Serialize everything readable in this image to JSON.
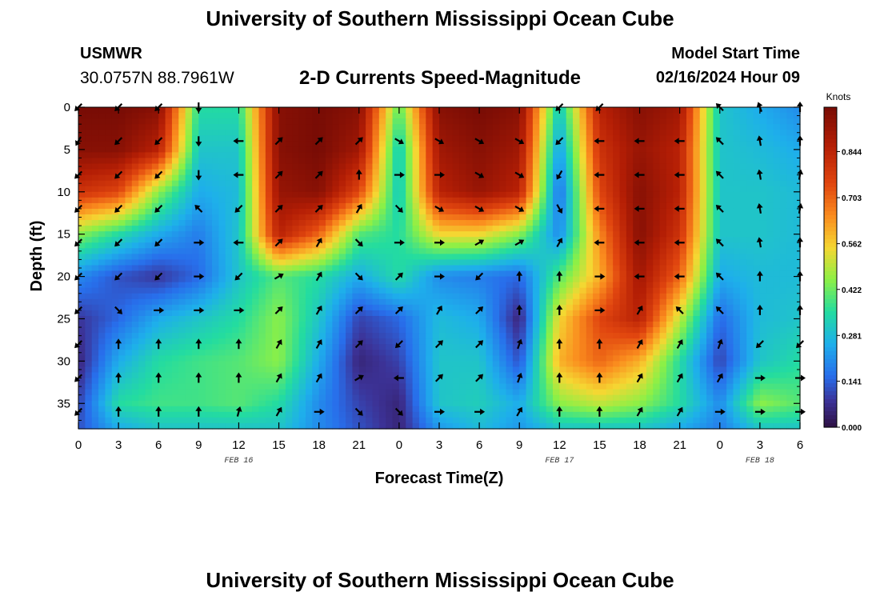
{
  "page": {
    "title": "University of Southern Mississippi Ocean Cube",
    "footer_title": "University of Southern Mississippi Ocean Cube"
  },
  "header": {
    "station": "USMWR",
    "coords": "30.0757N  88.7961W",
    "plot_title": "2-D Currents Speed-Magnitude",
    "model_label": "Model Start Time",
    "model_time": "02/16/2024 Hour 09"
  },
  "chart_data": {
    "type": "heatmap",
    "title": "2-D Currents Speed-Magnitude",
    "xlabel": "Forecast Time(Z)",
    "ylabel": "Depth (ft)",
    "x_tick_labels": [
      "0",
      "3",
      "6",
      "9",
      "12",
      "15",
      "18",
      "21",
      "0",
      "3",
      "6",
      "9",
      "12",
      "15",
      "18",
      "21",
      "0",
      "3",
      "6"
    ],
    "x_range_hours": [
      0,
      54
    ],
    "y_range_ft": [
      0,
      38
    ],
    "y_ticks": [
      0,
      5,
      10,
      15,
      20,
      25,
      30,
      35
    ],
    "date_labels": [
      {
        "label": "FEB 16",
        "hour": 12
      },
      {
        "label": "FEB 17",
        "hour": 36
      },
      {
        "label": "FEB 18",
        "hour": 51
      }
    ],
    "colorbar": {
      "unit": "Knots",
      "min": 0.0,
      "max": 0.98,
      "ticks": [
        "0.844",
        "0.703",
        "0.562",
        "0.422",
        "0.281",
        "0.141",
        "0.000"
      ]
    },
    "speed_anchors": {
      "hours": [
        0,
        3,
        6,
        9,
        12,
        15,
        18,
        21,
        24,
        27,
        30,
        33,
        36,
        39,
        42,
        45,
        48,
        51,
        54
      ],
      "depths_ft": [
        0,
        5,
        10,
        15,
        20,
        25,
        30,
        35,
        38
      ],
      "rows": [
        [
          0.98,
          0.98,
          0.95,
          0.35,
          0.35,
          0.95,
          0.98,
          0.95,
          0.4,
          0.95,
          0.98,
          0.95,
          0.3,
          0.85,
          0.95,
          0.9,
          0.3,
          0.25,
          0.2
        ],
        [
          0.95,
          0.95,
          0.85,
          0.3,
          0.3,
          0.95,
          0.98,
          0.9,
          0.3,
          0.9,
          0.95,
          0.9,
          0.22,
          0.8,
          0.92,
          0.85,
          0.3,
          0.28,
          0.25
        ],
        [
          0.8,
          0.75,
          0.45,
          0.25,
          0.28,
          0.92,
          0.95,
          0.75,
          0.3,
          0.85,
          0.92,
          0.85,
          0.15,
          0.75,
          0.95,
          0.85,
          0.3,
          0.3,
          0.28
        ],
        [
          0.45,
          0.35,
          0.25,
          0.18,
          0.3,
          0.85,
          0.7,
          0.4,
          0.35,
          0.55,
          0.55,
          0.45,
          0.2,
          0.65,
          0.95,
          0.8,
          0.3,
          0.3,
          0.28
        ],
        [
          0.2,
          0.12,
          0.08,
          0.15,
          0.3,
          0.4,
          0.35,
          0.25,
          0.35,
          0.2,
          0.18,
          0.15,
          0.4,
          0.6,
          0.9,
          0.7,
          0.25,
          0.28,
          0.28
        ],
        [
          0.08,
          0.15,
          0.25,
          0.3,
          0.35,
          0.45,
          0.3,
          0.1,
          0.15,
          0.28,
          0.25,
          0.05,
          0.55,
          0.75,
          0.85,
          0.5,
          0.15,
          0.28,
          0.3
        ],
        [
          0.05,
          0.25,
          0.35,
          0.38,
          0.4,
          0.45,
          0.25,
          0.05,
          0.1,
          0.3,
          0.3,
          0.12,
          0.6,
          0.7,
          0.6,
          0.35,
          0.1,
          0.3,
          0.35
        ],
        [
          0.1,
          0.35,
          0.38,
          0.38,
          0.4,
          0.35,
          0.2,
          0.1,
          0.05,
          0.3,
          0.32,
          0.25,
          0.45,
          0.5,
          0.45,
          0.35,
          0.2,
          0.45,
          0.4
        ],
        [
          0.12,
          0.25,
          0.3,
          0.3,
          0.3,
          0.3,
          0.2,
          0.12,
          0.05,
          0.22,
          0.28,
          0.22,
          0.3,
          0.3,
          0.3,
          0.25,
          0.18,
          0.3,
          0.3
        ]
      ]
    },
    "arrow_grid": {
      "hours": [
        0,
        3,
        6,
        9,
        12,
        15,
        18,
        21,
        24,
        27,
        30,
        33,
        36,
        39,
        42,
        45,
        48,
        51,
        54
      ],
      "depths_ft": [
        0,
        4,
        8,
        12,
        16,
        20,
        24,
        28,
        32,
        36
      ],
      "directions_deg": [
        [
          135,
          135,
          135,
          90,
          null,
          null,
          null,
          null,
          null,
          null,
          null,
          null,
          135,
          135,
          null,
          null,
          225,
          250,
          270
        ],
        [
          120,
          135,
          135,
          90,
          180,
          315,
          315,
          315,
          30,
          30,
          30,
          30,
          135,
          180,
          180,
          180,
          225,
          260,
          270
        ],
        [
          135,
          135,
          135,
          90,
          180,
          315,
          315,
          270,
          0,
          0,
          30,
          30,
          120,
          180,
          180,
          180,
          225,
          260,
          280
        ],
        [
          135,
          135,
          135,
          225,
          135,
          315,
          315,
          300,
          45,
          30,
          30,
          30,
          60,
          180,
          180,
          180,
          225,
          260,
          280
        ],
        [
          135,
          135,
          135,
          0,
          180,
          315,
          300,
          45,
          0,
          0,
          330,
          330,
          300,
          180,
          180,
          180,
          225,
          260,
          270
        ],
        [
          135,
          135,
          135,
          0,
          135,
          330,
          300,
          45,
          315,
          0,
          135,
          270,
          270,
          0,
          180,
          180,
          225,
          270,
          270
        ],
        [
          135,
          45,
          0,
          0,
          0,
          315,
          300,
          315,
          315,
          300,
          315,
          270,
          270,
          0,
          300,
          225,
          225,
          270,
          270
        ],
        [
          135,
          270,
          270,
          270,
          270,
          300,
          300,
          315,
          135,
          315,
          315,
          290,
          270,
          270,
          300,
          300,
          290,
          135,
          135
        ],
        [
          135,
          270,
          270,
          270,
          270,
          300,
          300,
          330,
          180,
          315,
          315,
          290,
          270,
          270,
          300,
          300,
          300,
          0,
          0
        ],
        [
          135,
          270,
          270,
          270,
          285,
          300,
          0,
          45,
          45,
          0,
          0,
          300,
          270,
          270,
          300,
          300,
          0,
          0,
          0
        ]
      ]
    }
  }
}
